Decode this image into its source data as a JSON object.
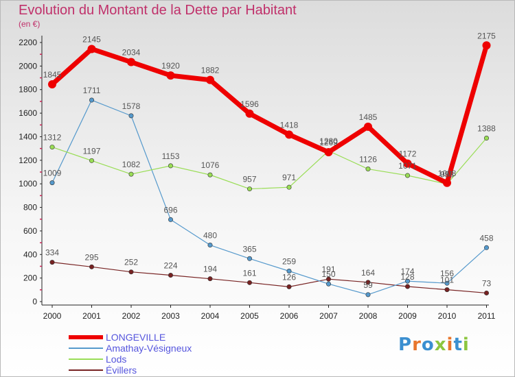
{
  "chart_data": {
    "type": "line",
    "title": "Evolution du Montant de la Dette par Habitant",
    "subtitle": "(en €)",
    "x": [
      "2000",
      "2001",
      "2002",
      "2003",
      "2004",
      "2005",
      "2006",
      "2007",
      "2008",
      "2009",
      "2010",
      "2011"
    ],
    "y_ticks": [
      "0",
      "200",
      "400",
      "600",
      "800",
      "1000",
      "1200",
      "1400",
      "1600",
      "1800",
      "2000",
      "2200"
    ],
    "ylim": [
      0,
      2200
    ],
    "grid": false,
    "legend_position": "bottom-left",
    "series": [
      {
        "name": "LONGEVILLE",
        "color": "#ee0000",
        "values": [
          1845,
          2145,
          2034,
          1920,
          1882,
          1596,
          1418,
          1269,
          1485,
          1172,
          1008,
          2175
        ]
      },
      {
        "name": "Amathay-Vésigneux",
        "color": "#5599cc",
        "values": [
          1009,
          1711,
          1578,
          696,
          480,
          365,
          259,
          150,
          59,
          174,
          156,
          458
        ]
      },
      {
        "name": "Lods",
        "color": "#99dd55",
        "values": [
          1312,
          1197,
          1082,
          1153,
          1076,
          957,
          971,
          1280,
          1126,
          1071,
          998,
          1388
        ]
      },
      {
        "name": "Évillers",
        "color": "#772222",
        "values": [
          334,
          295,
          252,
          224,
          194,
          161,
          126,
          191,
          164,
          128,
          101,
          73
        ]
      }
    ]
  },
  "logo": {
    "text": "Proxiti"
  }
}
